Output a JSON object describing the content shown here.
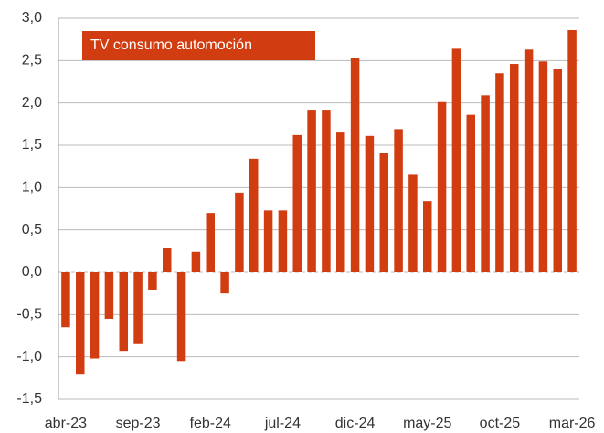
{
  "chart_data": {
    "type": "bar",
    "categories": [
      "abr-23",
      null,
      null,
      null,
      null,
      "sep-23",
      null,
      null,
      null,
      null,
      "feb-24",
      null,
      null,
      null,
      null,
      "jul-24",
      null,
      null,
      null,
      null,
      "dic-24",
      null,
      null,
      null,
      null,
      "may-25",
      null,
      null,
      null,
      null,
      "oct-25",
      null,
      null,
      null,
      null,
      "mar-26"
    ],
    "series": [
      {
        "name": "TV consumo automoción",
        "color": "#d13c10",
        "values": [
          -0.65,
          -1.2,
          -1.02,
          -0.55,
          -0.93,
          -0.85,
          -0.21,
          0.29,
          -1.05,
          0.24,
          0.7,
          -0.25,
          0.94,
          1.34,
          0.73,
          0.73,
          1.62,
          1.92,
          1.92,
          1.65,
          2.53,
          1.61,
          1.41,
          1.69,
          1.15,
          0.84,
          2.01,
          2.64,
          1.86,
          2.09,
          2.35,
          2.46,
          2.63,
          2.49,
          2.4,
          2.86
        ]
      }
    ],
    "ylim": [
      -1.5,
      3.0
    ],
    "yticks": [
      {
        "value": -1.5,
        "label": "-1,5"
      },
      {
        "value": -1.0,
        "label": "-1,0"
      },
      {
        "value": -0.5,
        "label": "-0,5"
      },
      {
        "value": 0,
        "label": "0,0"
      },
      {
        "value": 0.5,
        "label": "0,5"
      },
      {
        "value": 1.0,
        "label": "1,0"
      },
      {
        "value": 1.5,
        "label": "1,5"
      },
      {
        "value": 2.0,
        "label": "2,0"
      },
      {
        "value": 2.5,
        "label": "2,5"
      },
      {
        "value": 3.0,
        "label": "3,0"
      }
    ],
    "grid": true,
    "legend": "upper left"
  }
}
